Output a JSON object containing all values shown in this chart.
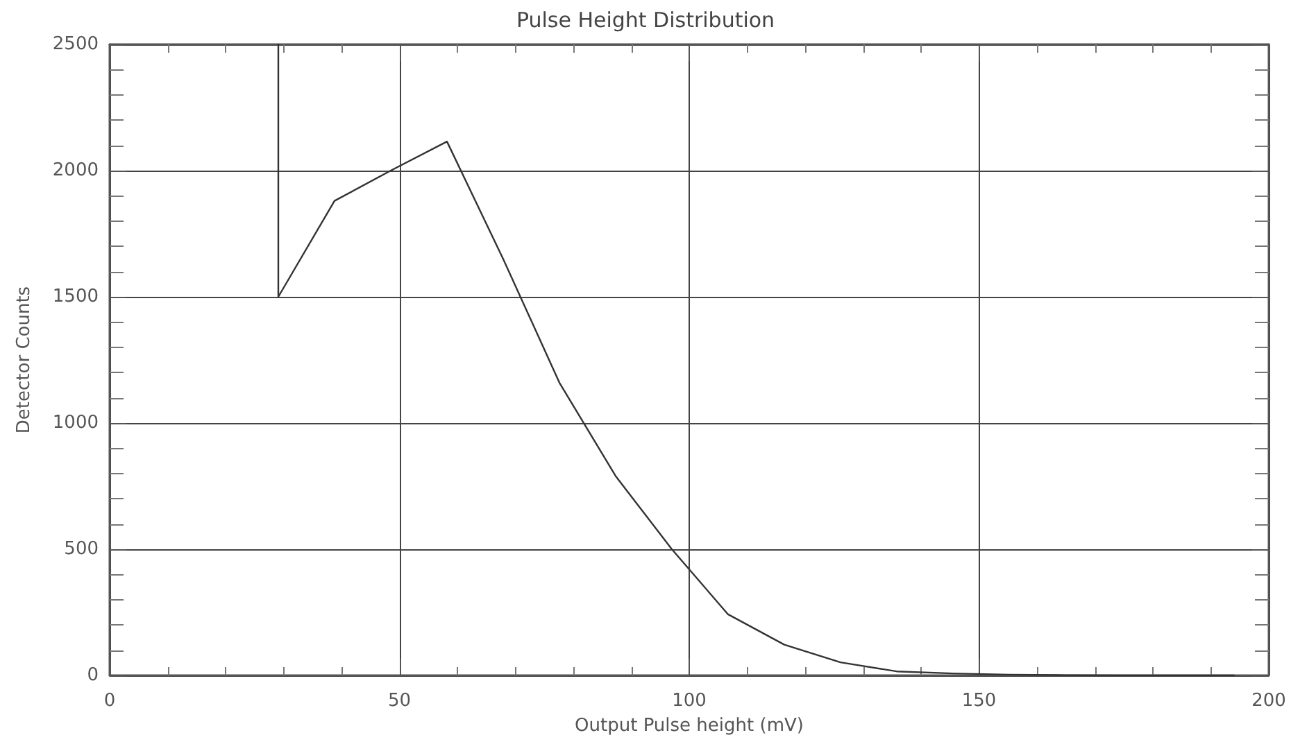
{
  "chart_data": {
    "type": "line",
    "title": "Pulse Height Distribution",
    "xlabel": "Output Pulse height (mV)",
    "ylabel": "Detector Counts",
    "x": [
      29.1,
      29.1,
      38.8,
      48.5,
      58.2,
      67.9,
      77.6,
      87.3,
      97,
      106.7,
      116.4,
      126.1,
      135.8,
      145.5,
      155.2,
      164.9,
      174.6,
      184.3,
      194
    ],
    "series": [
      {
        "color": "#333333",
        "values": [
          2500,
          1500,
          1880,
          2000,
          2115,
          1650,
          1160,
          790,
          500,
          242,
          122,
          52,
          16,
          8,
          3,
          1,
          0,
          0,
          0
        ]
      }
    ],
    "xlim": [
      0,
      200
    ],
    "xticks": [
      0,
      50,
      100,
      150,
      200
    ],
    "ylim": [
      0,
      2500
    ],
    "yticks": [
      0,
      500,
      1000,
      1500,
      2000,
      2500
    ],
    "grid": true,
    "marker": "none",
    "line_style": "solid"
  }
}
